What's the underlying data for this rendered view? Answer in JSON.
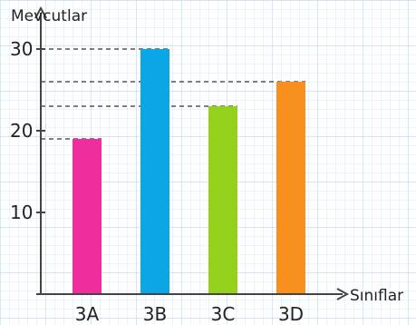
{
  "chart_data": {
    "type": "bar",
    "xlabel": "Sınıflar",
    "ylabel": "Mevcutlar",
    "categories": [
      "3A",
      "3B",
      "3C",
      "3D"
    ],
    "values": [
      19,
      30,
      23,
      26
    ],
    "ylim": [
      0,
      30
    ],
    "yticks": [
      10,
      20,
      30
    ],
    "grid": true,
    "bar_colors": [
      "#ee2e9a",
      "#0aa6e6",
      "#93d11c",
      "#f7901e"
    ],
    "reference_lines": [
      30,
      26,
      23,
      19
    ]
  }
}
